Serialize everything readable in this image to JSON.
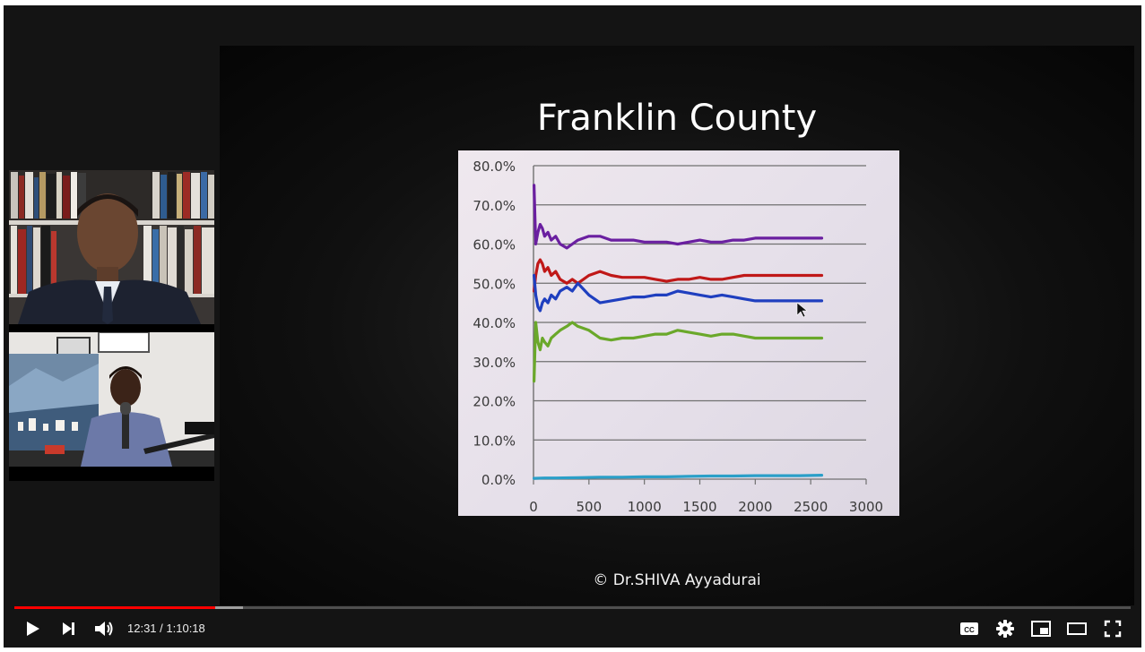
{
  "slide": {
    "title": "Franklin County",
    "copyright": "© Dr.SHIVA Ayyadurai"
  },
  "player": {
    "current_time": "12:31",
    "separator": " / ",
    "duration": "1:10:18",
    "progress_played": 0.18,
    "progress_buffered": 0.205,
    "accent_color": "#ff0000",
    "icons": [
      "play-icon",
      "next-icon",
      "volume-icon",
      "subtitles-icon",
      "settings-icon",
      "miniplayer-icon",
      "theater-icon",
      "fullscreen-icon"
    ]
  },
  "chart_data": {
    "type": "line",
    "title": "",
    "xlabel": "",
    "ylabel": "",
    "xlim": [
      0,
      3000
    ],
    "ylim": [
      0,
      80
    ],
    "x_ticks": [
      "0",
      "500",
      "1000",
      "1500",
      "2000",
      "2500",
      "3000"
    ],
    "y_ticks": [
      "0.0%",
      "10.0%",
      "20.0%",
      "30.0%",
      "40.0%",
      "50.0%",
      "60.0%",
      "70.0%",
      "80.0%"
    ],
    "grid": true,
    "series": [
      {
        "color": "#6a1fa0",
        "x": [
          5,
          20,
          40,
          60,
          80,
          100,
          130,
          160,
          200,
          240,
          300,
          350,
          400,
          500,
          600,
          700,
          800,
          900,
          1000,
          1100,
          1200,
          1300,
          1400,
          1500,
          1600,
          1700,
          1800,
          1900,
          2000,
          2100,
          2200,
          2300,
          2400,
          2500,
          2600
        ],
        "y": [
          75,
          60,
          63,
          65,
          64,
          62,
          63,
          61,
          62,
          60,
          59,
          60,
          61,
          62,
          62,
          61,
          61,
          61,
          60.5,
          60.5,
          60.5,
          60,
          60.5,
          61,
          60.5,
          60.5,
          61,
          61,
          61.5,
          61.5,
          61.5,
          61.5,
          61.5,
          61.5,
          61.5
        ]
      },
      {
        "color": "#c01818",
        "x": [
          5,
          20,
          40,
          60,
          80,
          100,
          130,
          160,
          200,
          240,
          300,
          350,
          400,
          500,
          600,
          700,
          800,
          900,
          1000,
          1100,
          1200,
          1300,
          1400,
          1500,
          1600,
          1700,
          1800,
          1900,
          2000,
          2100,
          2200,
          2300,
          2400,
          2500,
          2600
        ],
        "y": [
          48,
          52,
          55,
          56,
          55,
          53,
          54,
          52,
          53,
          51,
          50,
          51,
          50,
          52,
          53,
          52,
          51.5,
          51.5,
          51.5,
          51,
          50.5,
          51,
          51,
          51.5,
          51,
          51,
          51.5,
          52,
          52,
          52,
          52,
          52,
          52,
          52,
          52
        ]
      },
      {
        "color": "#1f3fbf",
        "x": [
          5,
          20,
          40,
          60,
          80,
          100,
          130,
          160,
          200,
          240,
          300,
          350,
          400,
          500,
          600,
          700,
          800,
          900,
          1000,
          1100,
          1200,
          1300,
          1400,
          1500,
          1600,
          1700,
          1800,
          1900,
          2000,
          2100,
          2200,
          2300,
          2400,
          2500,
          2600
        ],
        "y": [
          52,
          47,
          44,
          43,
          45,
          46,
          45,
          47,
          46,
          48,
          49,
          48,
          50,
          47,
          45,
          45.5,
          46,
          46.5,
          46.5,
          47,
          47,
          48,
          47.5,
          47,
          46.5,
          47,
          46.5,
          46,
          45.5,
          45.5,
          45.5,
          45.5,
          45.5,
          45.5,
          45.5
        ]
      },
      {
        "color": "#6aa82a",
        "x": [
          5,
          20,
          40,
          60,
          80,
          100,
          130,
          160,
          200,
          240,
          300,
          350,
          400,
          500,
          600,
          700,
          800,
          900,
          1000,
          1100,
          1200,
          1300,
          1400,
          1500,
          1600,
          1700,
          1800,
          1900,
          2000,
          2100,
          2200,
          2300,
          2400,
          2500,
          2600
        ],
        "y": [
          25,
          40,
          35,
          33,
          36,
          35,
          34,
          36,
          37,
          38,
          39,
          40,
          39,
          38,
          36,
          35.5,
          36,
          36,
          36.5,
          37,
          37,
          38,
          37.5,
          37,
          36.5,
          37,
          37,
          36.5,
          36,
          36,
          36,
          36,
          36,
          36,
          36
        ]
      },
      {
        "color": "#2a9fc8",
        "x": [
          5,
          100,
          200,
          400,
          600,
          800,
          1000,
          1200,
          1400,
          1600,
          1800,
          2000,
          2200,
          2400,
          2600
        ],
        "y": [
          0.2,
          0.3,
          0.3,
          0.4,
          0.5,
          0.5,
          0.6,
          0.6,
          0.7,
          0.8,
          0.8,
          0.9,
          0.9,
          0.9,
          1.0
        ]
      }
    ]
  }
}
